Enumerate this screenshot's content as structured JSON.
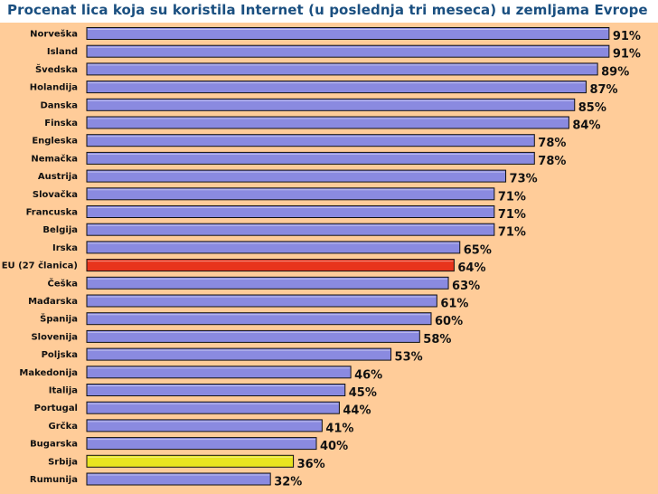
{
  "colors": {
    "plot_bg": "#ffcc99",
    "bar_default": "#8a8ae0",
    "bar_highlight_eu": "#e8341c",
    "bar_highlight_rs": "#e8e420",
    "bar_stroke": "#111111",
    "title": "#1a4f80"
  },
  "chart_data": {
    "type": "bar",
    "orientation": "horizontal",
    "title": "Procenat lica koja su koristila Internet (u poslednja tri meseca) u zemljama Evrope",
    "xlabel": "",
    "ylabel": "",
    "xlim": [
      0,
      100
    ],
    "value_suffix": "%",
    "categories": [
      "Norveška",
      "Island",
      "Švedska",
      "Holandija",
      "Danska",
      "Finska",
      "Engleska",
      "Nemačka",
      "Austrija",
      "Slovačka",
      "Francuska",
      "Belgija",
      "Irska",
      "EU (27 članica)",
      "Češka",
      "Mađarska",
      "Španija",
      "Slovenija",
      "Poljska",
      "Makedonija",
      "Italija",
      "Portugal",
      "Grčka",
      "Bugarska",
      "Srbija",
      "Rumunija"
    ],
    "values": [
      91,
      91,
      89,
      87,
      85,
      84,
      78,
      78,
      73,
      71,
      71,
      71,
      65,
      64,
      63,
      61,
      60,
      58,
      53,
      46,
      45,
      44,
      41,
      40,
      36,
      32
    ],
    "value_labels": [
      "91%",
      "91%",
      "89%",
      "87%",
      "85%",
      "84%",
      "78%",
      "78%",
      "73%",
      "71%",
      "71%",
      "71%",
      "65%",
      "64%",
      "63%",
      "61%",
      "60%",
      "58%",
      "53%",
      "46%",
      "45%",
      "44%",
      "41%",
      "40%",
      "36%",
      "32%"
    ],
    "highlights": {
      "EU (27 članica)": "bar_highlight_eu",
      "Srbija": "bar_highlight_rs"
    },
    "grid": false,
    "legend": "none"
  }
}
